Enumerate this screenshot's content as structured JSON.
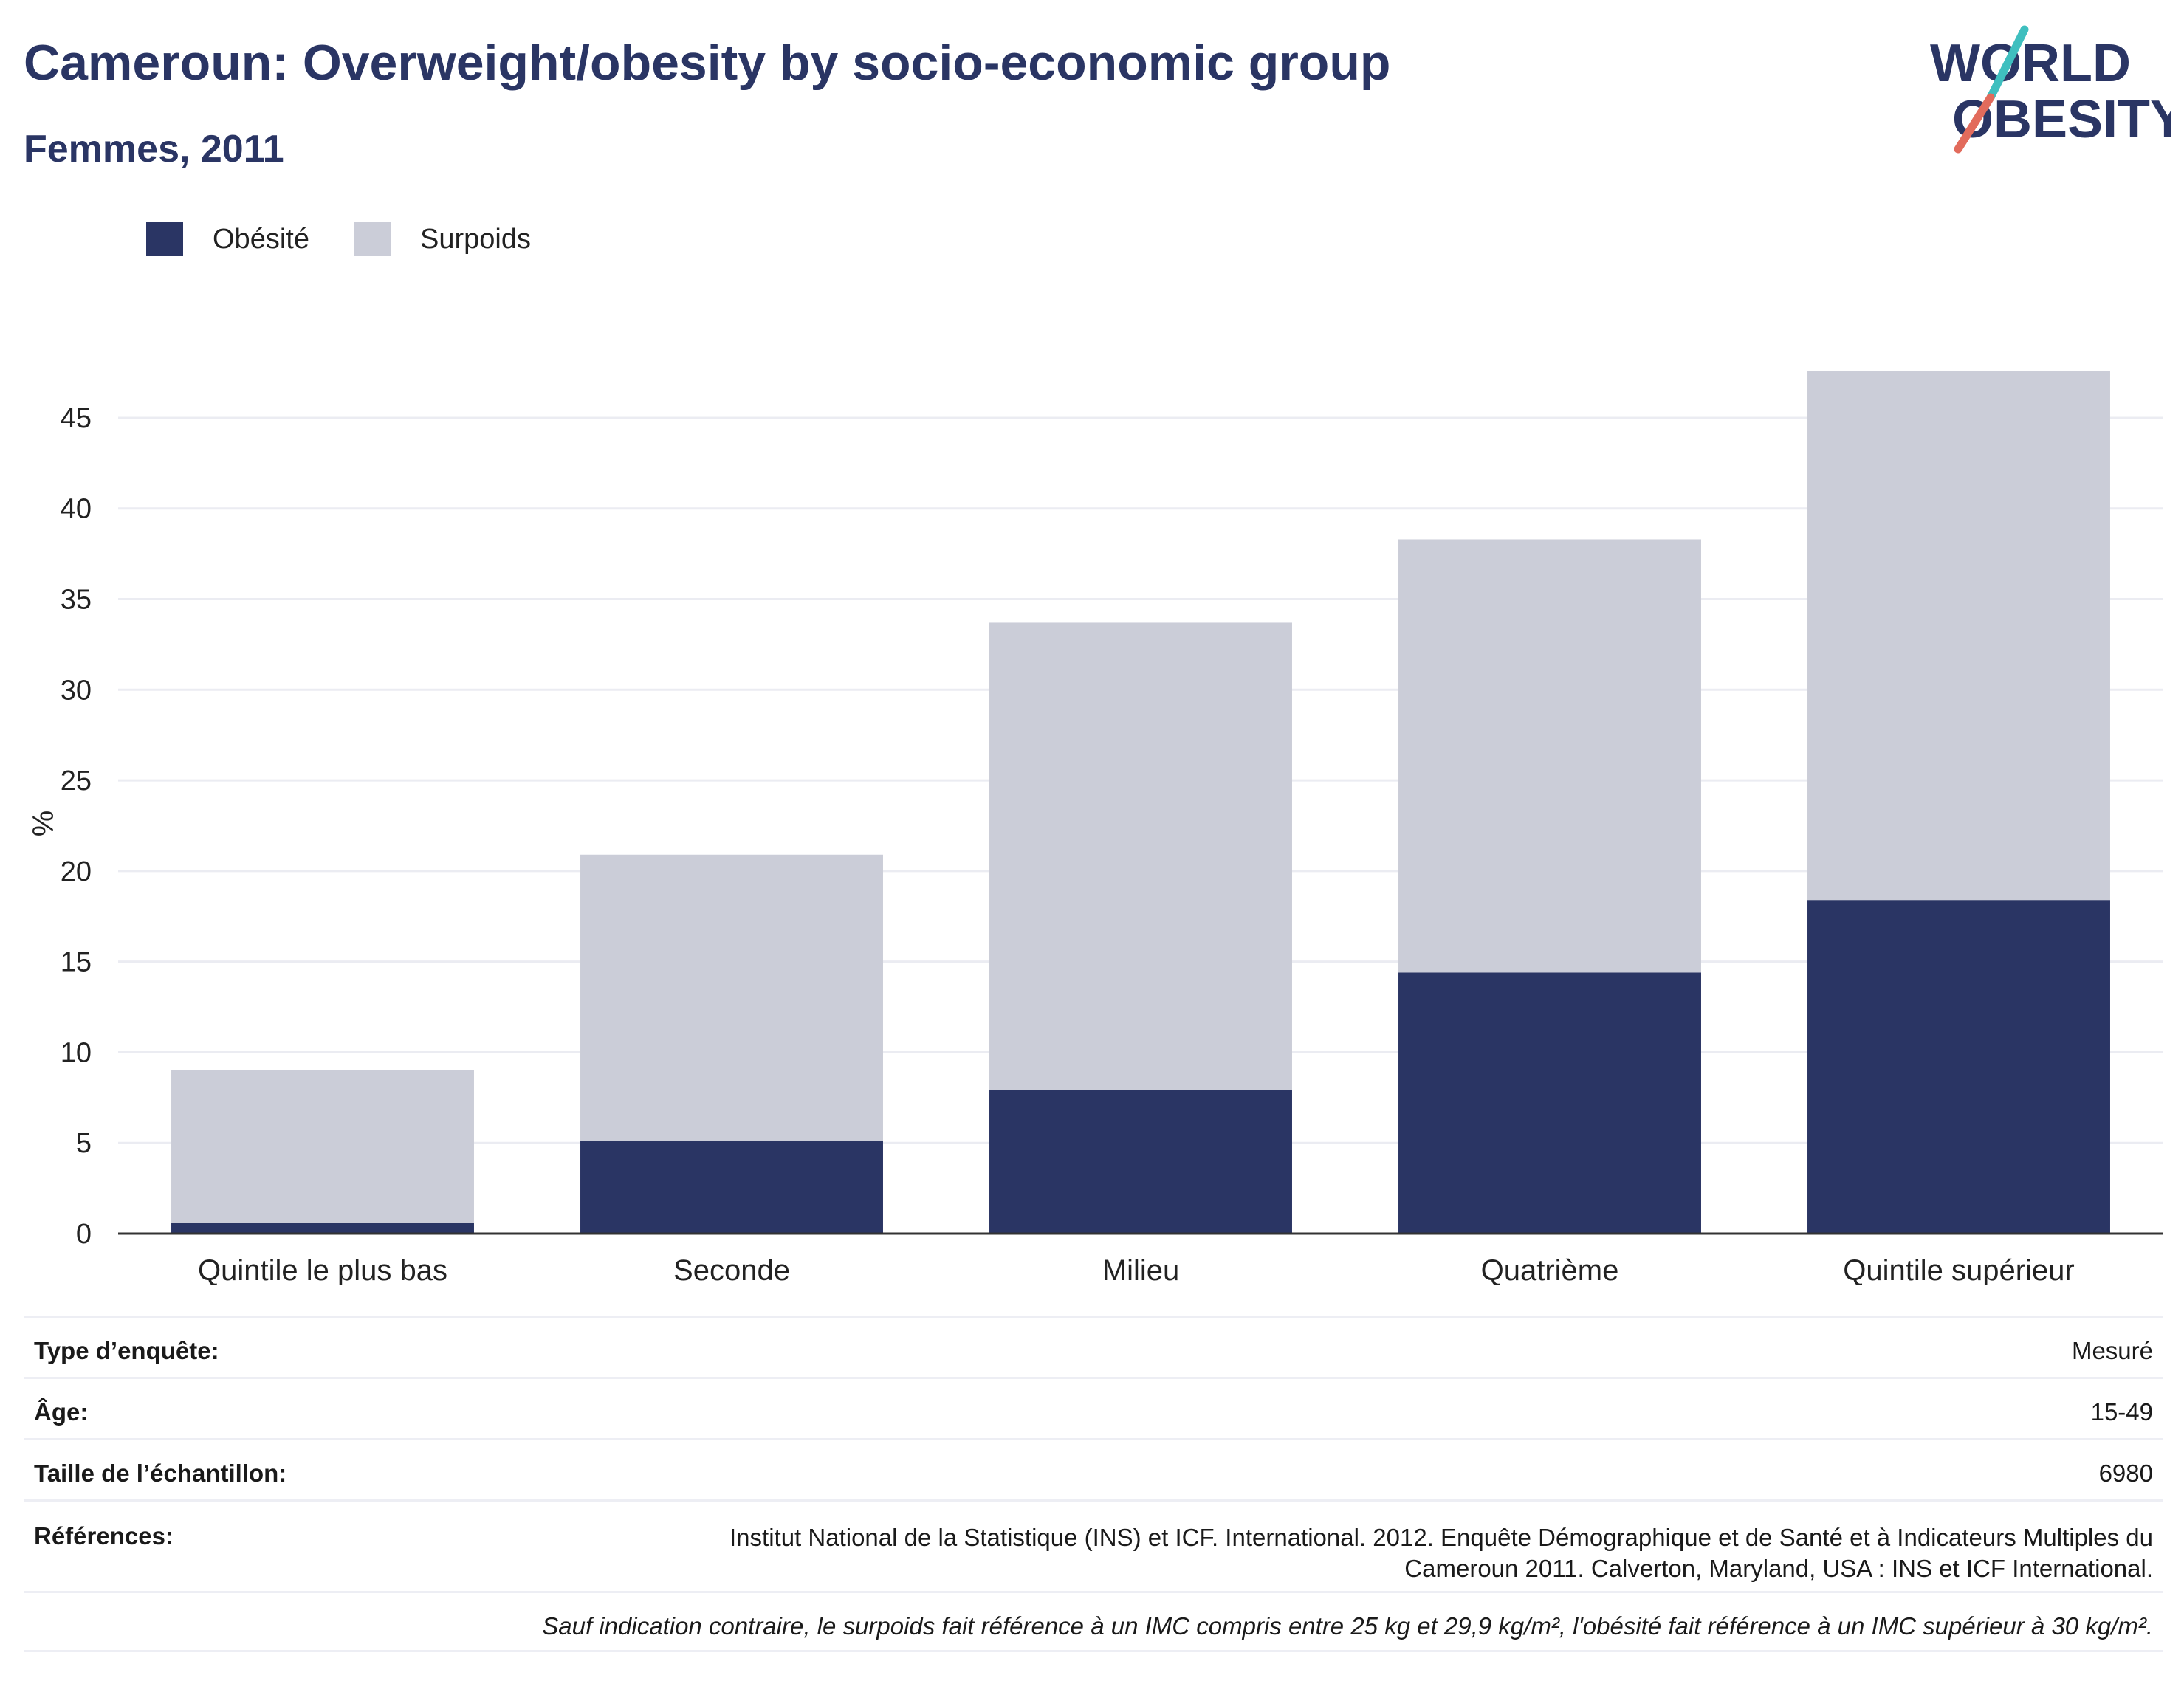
{
  "header": {
    "title": "Cameroun: Overweight/obesity by socio-economic group",
    "subtitle": "Femmes, 2011"
  },
  "logo": {
    "line1": "WORLD",
    "line2": "OBESITY",
    "icon": "world-obesity-logo"
  },
  "colors": {
    "obesity": "#2a3564",
    "overweight": "#cbcdd8",
    "grid": "#ebecf2",
    "axis": "#333333",
    "accent_teal": "#3fbfbf",
    "accent_coral": "#e26b5c"
  },
  "legend": {
    "items": [
      {
        "label": "Obésité",
        "color": "#2a3564"
      },
      {
        "label": "Surpoids",
        "color": "#cbcdd8"
      }
    ]
  },
  "chart_data": {
    "type": "bar",
    "stacked": true,
    "categories": [
      "Quintile le plus bas",
      "Seconde",
      "Milieu",
      "Quatrième",
      "Quintile supérieur"
    ],
    "series": [
      {
        "name": "Obésité",
        "values": [
          0.6,
          5.1,
          7.9,
          14.4,
          18.4
        ]
      },
      {
        "name": "Surpoids",
        "values": [
          8.4,
          15.8,
          25.8,
          23.9,
          29.2
        ]
      }
    ],
    "ylabel": "%",
    "yticks": [
      0,
      5,
      10,
      15,
      20,
      25,
      30,
      35,
      40,
      45
    ],
    "ylim": [
      0,
      48.5
    ],
    "grid": true,
    "legend_position": "top-left"
  },
  "info": {
    "survey_type_label": "Type d’enquête:",
    "survey_type_value": "Mesuré",
    "age_label": "Âge:",
    "age_value": "15-49",
    "sample_label": "Taille de l’échantillon:",
    "sample_value": "6980",
    "references_label": "Références:",
    "references_value": "Institut National de la Statistique (INS) et ICF. International. 2012. Enquête Démographique et de Santé et à Indicateurs Multiples du Cameroun 2011. Calverton, Maryland, USA : INS et ICF International.",
    "note": "Sauf indication contraire, le surpoids fait référence à un IMC compris entre 25 kg et 29,9 kg/m², l'obésité fait référence à un IMC supérieur à 30 kg/m²."
  }
}
